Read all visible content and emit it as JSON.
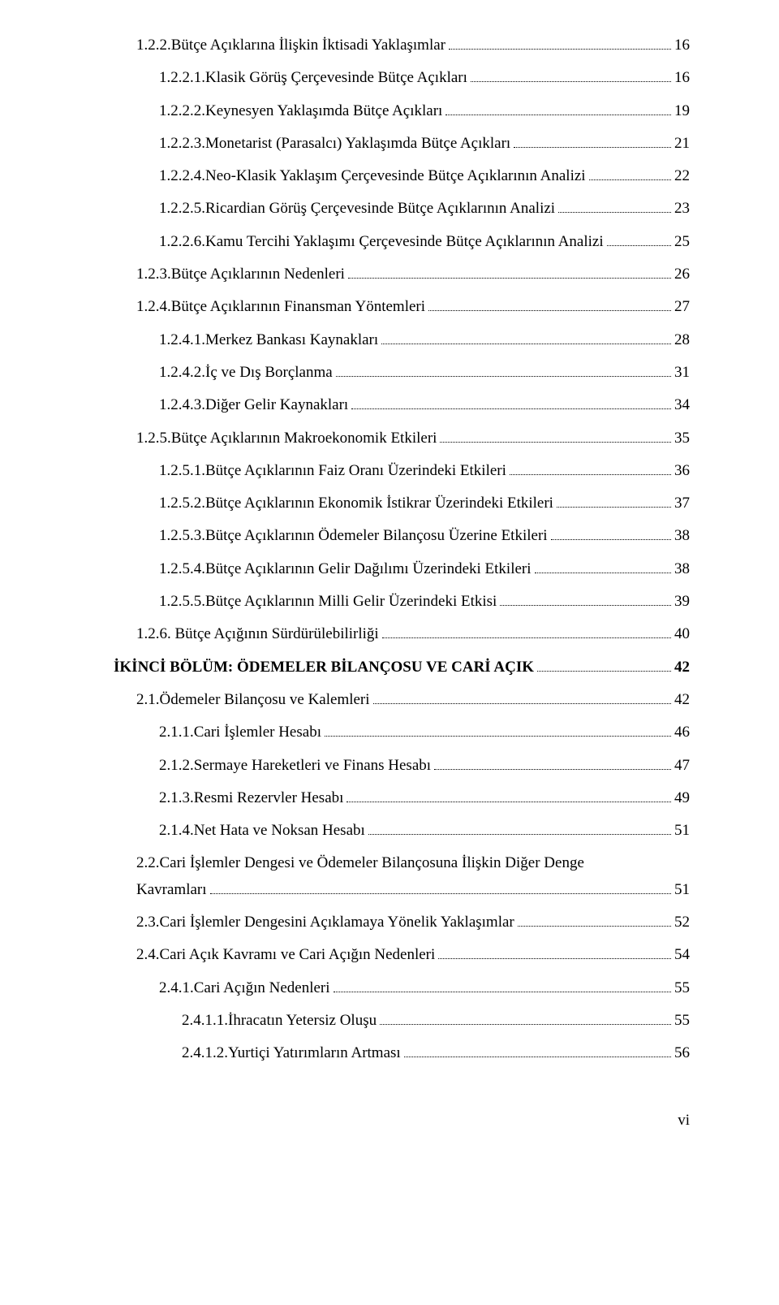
{
  "colors": {
    "text": "#000000",
    "background": "#ffffff"
  },
  "typography": {
    "font_family": "Times New Roman",
    "base_size_pt": 14,
    "bold_weight": 700
  },
  "pageLabel": "vi",
  "entries": [
    {
      "level": 1,
      "bold": false,
      "text": "1.2.2.Bütçe Açıklarına İlişkin İktisadi Yaklaşımlar",
      "page": "16"
    },
    {
      "level": 2,
      "bold": false,
      "text": "1.2.2.1.Klasik Görüş Çerçevesinde Bütçe Açıkları",
      "page": "16"
    },
    {
      "level": 2,
      "bold": false,
      "text": "1.2.2.2.Keynesyen Yaklaşımda Bütçe Açıkları",
      "page": "19"
    },
    {
      "level": 2,
      "bold": false,
      "text": "1.2.2.3.Monetarist (Parasalcı) Yaklaşımda Bütçe Açıkları",
      "page": "21"
    },
    {
      "level": 2,
      "bold": false,
      "text": "1.2.2.4.Neo-Klasik Yaklaşım Çerçevesinde Bütçe Açıklarının Analizi",
      "page": "22"
    },
    {
      "level": 2,
      "bold": false,
      "text": "1.2.2.5.Ricardian Görüş Çerçevesinde Bütçe Açıklarının Analizi",
      "page": "23"
    },
    {
      "level": 2,
      "bold": false,
      "text": "1.2.2.6.Kamu Tercihi Yaklaşımı Çerçevesinde Bütçe Açıklarının Analizi",
      "page": "25"
    },
    {
      "level": 1,
      "bold": false,
      "text": "1.2.3.Bütçe Açıklarının Nedenleri",
      "page": "26"
    },
    {
      "level": 1,
      "bold": false,
      "text": "1.2.4.Bütçe Açıklarının Finansman Yöntemleri",
      "page": "27"
    },
    {
      "level": 2,
      "bold": false,
      "text": "1.2.4.1.Merkez Bankası Kaynakları",
      "page": "28"
    },
    {
      "level": 2,
      "bold": false,
      "text": "1.2.4.2.İç ve Dış Borçlanma",
      "page": "31"
    },
    {
      "level": 2,
      "bold": false,
      "text": "1.2.4.3.Diğer Gelir Kaynakları",
      "page": "34"
    },
    {
      "level": 1,
      "bold": false,
      "text": "1.2.5.Bütçe Açıklarının Makroekonomik Etkileri",
      "page": "35"
    },
    {
      "level": 2,
      "bold": false,
      "text": "1.2.5.1.Bütçe Açıklarının Faiz Oranı Üzerindeki Etkileri",
      "page": "36"
    },
    {
      "level": 2,
      "bold": false,
      "text": "1.2.5.2.Bütçe Açıklarının Ekonomik İstikrar Üzerindeki Etkileri",
      "page": "37"
    },
    {
      "level": 2,
      "bold": false,
      "text": "1.2.5.3.Bütçe Açıklarının Ödemeler Bilançosu Üzerine Etkileri",
      "page": "38"
    },
    {
      "level": 2,
      "bold": false,
      "text": "1.2.5.4.Bütçe Açıklarının Gelir Dağılımı Üzerindeki Etkileri",
      "page": "38"
    },
    {
      "level": 2,
      "bold": false,
      "text": "1.2.5.5.Bütçe Açıklarının Milli Gelir Üzerindeki Etkisi",
      "page": "39"
    },
    {
      "level": 1,
      "bold": false,
      "text": "1.2.6. Bütçe Açığının Sürdürülebilirliği",
      "page": "40"
    },
    {
      "level": 0,
      "bold": true,
      "text": "İKİNCİ BÖLÜM: ÖDEMELER BİLANÇOSU VE CARİ AÇIK",
      "page": "42"
    },
    {
      "level": 1,
      "bold": false,
      "text": "2.1.Ödemeler Bilançosu ve Kalemleri",
      "page": "42"
    },
    {
      "level": 2,
      "bold": false,
      "text": "2.1.1.Cari İşlemler Hesabı",
      "page": "46"
    },
    {
      "level": 2,
      "bold": false,
      "text": "2.1.2.Sermaye Hareketleri ve Finans Hesabı",
      "page": "47"
    },
    {
      "level": 2,
      "bold": false,
      "text": "2.1.3.Resmi Rezervler Hesabı",
      "page": "49"
    },
    {
      "level": 2,
      "bold": false,
      "text": "2.1.4.Net Hata ve Noksan Hesabı",
      "page": "51"
    },
    {
      "level": 1,
      "bold": false,
      "wrap": true,
      "text": "2.2.Cari İşlemler Dengesi ve Ödemeler Bilançosuna İlişkin Diğer Denge Kavramları",
      "page": "51"
    },
    {
      "level": 1,
      "bold": false,
      "text": "2.3.Cari İşlemler Dengesini Açıklamaya Yönelik Yaklaşımlar",
      "page": "52"
    },
    {
      "level": 1,
      "bold": false,
      "text": "2.4.Cari Açık Kavramı ve Cari Açığın Nedenleri",
      "page": "54"
    },
    {
      "level": 2,
      "bold": false,
      "text": "2.4.1.Cari Açığın Nedenleri",
      "page": "55"
    },
    {
      "level": 3,
      "bold": false,
      "text": "2.4.1.1.İhracatın Yetersiz Oluşu",
      "page": "55"
    },
    {
      "level": 3,
      "bold": false,
      "text": "2.4.1.2.Yurtiçi Yatırımların Artması",
      "page": "56"
    }
  ]
}
